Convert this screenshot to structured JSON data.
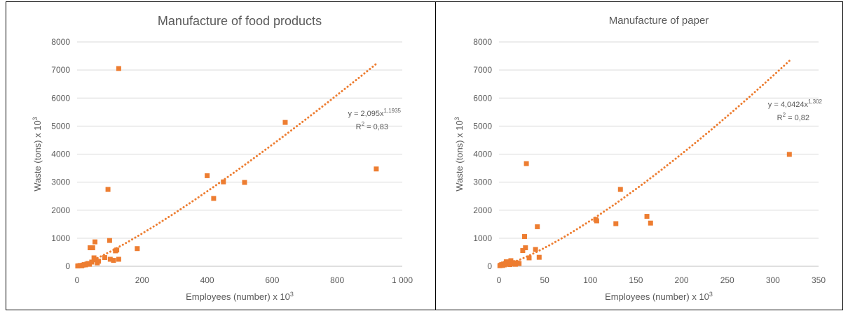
{
  "chart_data": [
    {
      "type": "scatter",
      "title": "Manufacture of food products",
      "xlabel": "Employees (number) x 10",
      "xlabel_sup": "3",
      "ylabel": "Waste (tons) x 10",
      "ylabel_sup": "3",
      "xlim": [
        0,
        1000
      ],
      "ylim": [
        0,
        8000
      ],
      "xticks": [
        0,
        200,
        400,
        600,
        800,
        1000
      ],
      "xtick_labels": [
        "0",
        "200",
        "400",
        "600",
        "800",
        "1 000"
      ],
      "yticks": [
        0,
        1000,
        2000,
        3000,
        4000,
        5000,
        6000,
        7000,
        8000
      ],
      "ytick_labels": [
        "0",
        "1000",
        "2000",
        "3000",
        "4000",
        "5000",
        "6000",
        "7000",
        "8000"
      ],
      "grid": true,
      "marker_color": "#ED7D31",
      "points": [
        [
          2,
          10
        ],
        [
          6,
          20
        ],
        [
          10,
          30
        ],
        [
          14,
          15
        ],
        [
          18,
          40
        ],
        [
          22,
          60
        ],
        [
          26,
          50
        ],
        [
          30,
          80
        ],
        [
          34,
          100
        ],
        [
          38,
          70
        ],
        [
          40,
          660
        ],
        [
          45,
          150
        ],
        [
          48,
          660
        ],
        [
          52,
          300
        ],
        [
          55,
          870
        ],
        [
          58,
          230
        ],
        [
          62,
          120
        ],
        [
          66,
          180
        ],
        [
          85,
          310
        ],
        [
          95,
          2740
        ],
        [
          100,
          920
        ],
        [
          102,
          250
        ],
        [
          112,
          210
        ],
        [
          118,
          550
        ],
        [
          122,
          580
        ],
        [
          128,
          7050
        ],
        [
          128,
          250
        ],
        [
          185,
          630
        ],
        [
          400,
          3230
        ],
        [
          420,
          2420
        ],
        [
          450,
          3010
        ],
        [
          515,
          2990
        ],
        [
          640,
          5130
        ],
        [
          920,
          3470
        ]
      ],
      "trendline": {
        "type": "power",
        "a": 2.095,
        "b": 1.1935,
        "x_range": [
          2,
          920
        ]
      },
      "equation_text": "y = 2,095x",
      "equation_exp": "1,1935",
      "r2_text": "R",
      "r2_sup": "2",
      "r2_value": " = 0,83"
    },
    {
      "type": "scatter",
      "title": "Manufacture of paper",
      "xlabel": "Employees (number) x 10",
      "xlabel_sup": "3",
      "ylabel": "Waste (tons) x 10",
      "ylabel_sup": "3",
      "xlim": [
        0,
        350
      ],
      "ylim": [
        0,
        8000
      ],
      "xticks": [
        0,
        50,
        100,
        150,
        200,
        250,
        300,
        350
      ],
      "xtick_labels": [
        "0",
        "50",
        "100",
        "150",
        "200",
        "250",
        "300",
        "350"
      ],
      "yticks": [
        0,
        1000,
        2000,
        3000,
        4000,
        5000,
        6000,
        7000,
        8000
      ],
      "ytick_labels": [
        "0",
        "1000",
        "2000",
        "3000",
        "4000",
        "5000",
        "6000",
        "7000",
        "8000"
      ],
      "grid": true,
      "marker_color": "#ED7D31",
      "points": [
        [
          1,
          20
        ],
        [
          2,
          40
        ],
        [
          3,
          60
        ],
        [
          4,
          30
        ],
        [
          5,
          80
        ],
        [
          6,
          50
        ],
        [
          7,
          100
        ],
        [
          8,
          160
        ],
        [
          9,
          120
        ],
        [
          10,
          80
        ],
        [
          11,
          140
        ],
        [
          12,
          60
        ],
        [
          13,
          200
        ],
        [
          14,
          100
        ],
        [
          15,
          130
        ],
        [
          16,
          90
        ],
        [
          17,
          110
        ],
        [
          18,
          70
        ],
        [
          20,
          120
        ],
        [
          22,
          100
        ],
        [
          26,
          560
        ],
        [
          28,
          1060
        ],
        [
          29,
          660
        ],
        [
          30,
          3660
        ],
        [
          33,
          300
        ],
        [
          40,
          600
        ],
        [
          42,
          1410
        ],
        [
          44,
          320
        ],
        [
          106,
          1670
        ],
        [
          107,
          1620
        ],
        [
          128,
          1520
        ],
        [
          133,
          2740
        ],
        [
          162,
          1780
        ],
        [
          166,
          1540
        ],
        [
          318,
          3990
        ]
      ],
      "trendline": {
        "type": "power",
        "a": 4.0424,
        "b": 1.302,
        "x_range": [
          1,
          320
        ]
      },
      "equation_text": "y = 4,0424x",
      "equation_exp": "1,302",
      "r2_text": "R",
      "r2_sup": "2",
      "r2_value": " = 0,82"
    }
  ]
}
